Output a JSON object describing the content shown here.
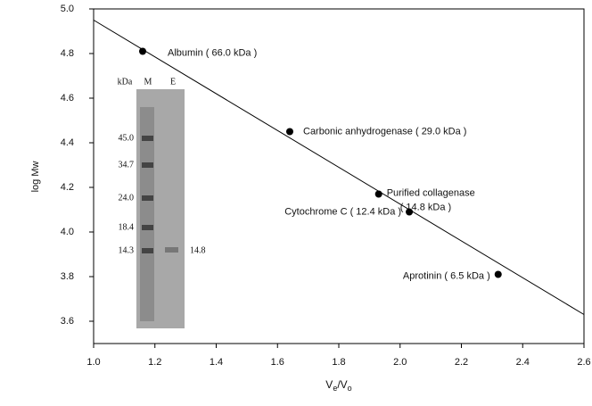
{
  "chart_data": {
    "type": "scatter",
    "x_label": [
      "V",
      "e",
      "/V",
      "o"
    ],
    "y_label": "log Mw",
    "xlim": [
      1.0,
      2.6
    ],
    "ylim": [
      3.5,
      5.0
    ],
    "xticks": [
      {
        "value": 1.0,
        "label": "1.0"
      },
      1.2,
      1.4,
      1.6,
      1.8,
      {
        "value": 2.0,
        "label": "2.0"
      },
      2.2,
      2.4,
      2.6
    ],
    "yticks": [
      3.6,
      3.8,
      {
        "value": 4.0,
        "label": "4.0"
      },
      4.2,
      4.4,
      4.6,
      4.8,
      {
        "value": 5.0,
        "label": "5.0"
      }
    ],
    "series": [
      {
        "color": "#000000",
        "x": [
          1.16,
          1.64,
          1.93,
          2.03,
          2.32
        ],
        "values": [
          4.81,
          4.45,
          4.17,
          4.09,
          3.81
        ],
        "labels": [
          [
            "Albumin ( 66.0 kDa )"
          ],
          [
            "Carbonic anhydrogenase ( 29.0 kDa )"
          ],
          [
            "Purified collagenase",
            "( 14.8 kDa )"
          ],
          [
            "Cytochrome C ( 12.4 kDa )"
          ],
          [
            "Aprotinin ( 6.5 kDa )"
          ]
        ]
      }
    ],
    "fit_line": {
      "x": [
        1.0,
        2.6
      ],
      "values": [
        4.95,
        3.63
      ]
    },
    "inset": {
      "headers": [
        "kDa",
        "M",
        "E"
      ],
      "markers": [
        "45.0",
        "34.7",
        "24.0",
        "18.4",
        "14.3"
      ],
      "sample": "14.8"
    }
  }
}
